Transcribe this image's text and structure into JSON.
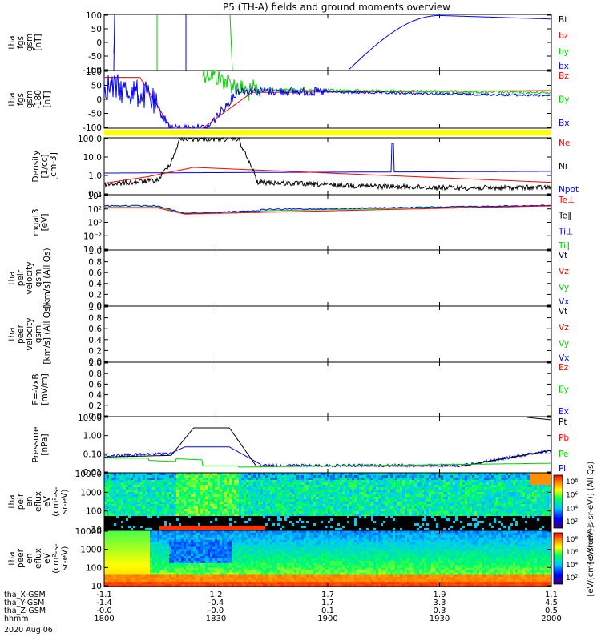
{
  "title": "P5 (TH-A) fields and ground moments overview",
  "colors": {
    "black": "#000000",
    "red": "#ff0000",
    "green": "#00d000",
    "blue": "#0000ff",
    "yellow": "#ffff00"
  },
  "chart_data": [
    {
      "type": "line",
      "id": "fgs",
      "ylabel": [
        "tha",
        "fgs",
        "gsm",
        "[nT]"
      ],
      "ylim": [
        -100,
        100
      ],
      "yticks": [
        "100",
        "50",
        "0",
        "-50",
        "-100"
      ],
      "legend": [
        {
          "label": "Bt",
          "color": "black"
        },
        {
          "label": "bz",
          "color": "red"
        },
        {
          "label": "by",
          "color": "green"
        },
        {
          "label": "bx",
          "color": "blue"
        }
      ]
    },
    {
      "type": "line",
      "id": "fgs_dsl",
      "ylabel": [
        "tha",
        "fgs",
        "gsm",
        "-180",
        "[nT]"
      ],
      "ylim": [
        -100,
        100
      ],
      "yticks": [
        "100",
        "50",
        "0",
        "-50",
        "-100"
      ],
      "legend": [
        {
          "label": "Bz",
          "color": "red"
        },
        {
          "label": "By",
          "color": "green"
        },
        {
          "label": "Bx",
          "color": "blue"
        }
      ]
    },
    {
      "type": "line",
      "id": "density",
      "ylabel": [
        "Density",
        "[1/cc]",
        "[cm-3]"
      ],
      "scale": "log",
      "yticks": [
        "100.0",
        "10.0",
        "1.0",
        "0.1"
      ],
      "legend": [
        {
          "label": "Ne",
          "color": "red"
        },
        {
          "label": "Ni",
          "color": "black"
        },
        {
          "label": "Npot",
          "color": "blue"
        }
      ]
    },
    {
      "type": "line",
      "id": "temp",
      "ylabel": [
        "mgat3",
        "[eV]"
      ],
      "scale": "log",
      "yticks": [
        "10⁴",
        "10²",
        "10⁰",
        "10⁻²",
        "10⁻⁴"
      ],
      "legend": [
        {
          "label": "Te⊥",
          "color": "red"
        },
        {
          "label": "Te∥",
          "color": "black"
        },
        {
          "label": "Ti⊥",
          "color": "blue"
        },
        {
          "label": "Ti∥",
          "color": "green"
        }
      ]
    },
    {
      "type": "line",
      "id": "peir_vel",
      "ylabel": [
        "tha",
        "peir",
        "velocity",
        "gsm",
        "[km/s] (All Qs)"
      ],
      "ylim": [
        0,
        1
      ],
      "yticks": [
        "1.0",
        "0.8",
        "0.6",
        "0.4",
        "0.2",
        "0.0"
      ],
      "legend": [
        {
          "label": "Vt",
          "color": "black"
        },
        {
          "label": "Vz",
          "color": "red"
        },
        {
          "label": "Vy",
          "color": "green"
        },
        {
          "label": "Vx",
          "color": "blue"
        }
      ]
    },
    {
      "type": "line",
      "id": "peer_vel",
      "ylabel": [
        "tha",
        "peer",
        "velocity",
        "gsm",
        "[km/s] (All Qs)"
      ],
      "ylim": [
        0,
        1
      ],
      "yticks": [
        "1.0",
        "0.8",
        "0.6",
        "0.4",
        "0.2",
        "0.0"
      ],
      "legend": [
        {
          "label": "Vt",
          "color": "black"
        },
        {
          "label": "Vz",
          "color": "red"
        },
        {
          "label": "Vy",
          "color": "green"
        },
        {
          "label": "Vx",
          "color": "blue"
        }
      ]
    },
    {
      "type": "line",
      "id": "efield",
      "ylabel": [
        "E=-VxB",
        "[mV/m]"
      ],
      "ylim": [
        0,
        1
      ],
      "yticks": [
        "1.0",
        "0.8",
        "0.6",
        "0.4",
        "0.2",
        "0.0"
      ],
      "legend": [
        {
          "label": "Ez",
          "color": "red"
        },
        {
          "label": "Ey",
          "color": "green"
        },
        {
          "label": "Ex",
          "color": "blue"
        }
      ]
    },
    {
      "type": "line",
      "id": "pressure",
      "ylabel": [
        "Pressure",
        "[nPa]"
      ],
      "scale": "log",
      "yticks": [
        "10.00",
        "1.00",
        "0.10",
        "0.01"
      ],
      "legend": [
        {
          "label": "Pt",
          "color": "black"
        },
        {
          "label": "Pb",
          "color": "red"
        },
        {
          "label": "Pe",
          "color": "green"
        },
        {
          "label": "Pi",
          "color": "blue"
        }
      ]
    },
    {
      "type": "heatmap",
      "id": "peir_en",
      "ylabel": [
        "tha",
        "peir",
        "en",
        "eflux",
        "eV",
        "(cm²-s-",
        "sr-eV)"
      ],
      "scale": "log",
      "yticks": [
        "10000",
        "1000",
        "100",
        "10"
      ],
      "colorbar": {
        "ticks": [
          "10⁸",
          "10⁶",
          "10⁴",
          "10²"
        ],
        "label": "[eV/(cm²-s-sr-eV)] (All Qs)"
      }
    },
    {
      "type": "heatmap",
      "id": "peer_en",
      "ylabel": [
        "tha",
        "peer",
        "en",
        "eflux",
        "eV",
        "(cm²-s-",
        "sr-eV)"
      ],
      "scale": "log",
      "yticks": [
        "10000",
        "1000",
        "100",
        "10"
      ],
      "colorbar": {
        "ticks": [
          "10⁸",
          "10⁶",
          "10⁴",
          "10²"
        ],
        "label": "[eV/(cm²-s-sr-eV)]"
      }
    }
  ],
  "xaxis": {
    "rows": [
      {
        "label": "tha_X-GSM",
        "values": [
          "-1.1",
          "1.2",
          "1.7",
          "1.9",
          "1.1"
        ]
      },
      {
        "label": "tha_Y-GSM",
        "values": [
          "-1.4",
          "-0.4",
          "1.7",
          "3.3",
          "4.5"
        ]
      },
      {
        "label": "tha_Z-GSM",
        "values": [
          "-0.0",
          "-0.0",
          "0.1",
          "0.3",
          "0.5"
        ]
      },
      {
        "label": "hhmm",
        "values": [
          "1800",
          "1830",
          "1900",
          "1930",
          "2000"
        ]
      }
    ],
    "date": "2020 Aug 06"
  }
}
